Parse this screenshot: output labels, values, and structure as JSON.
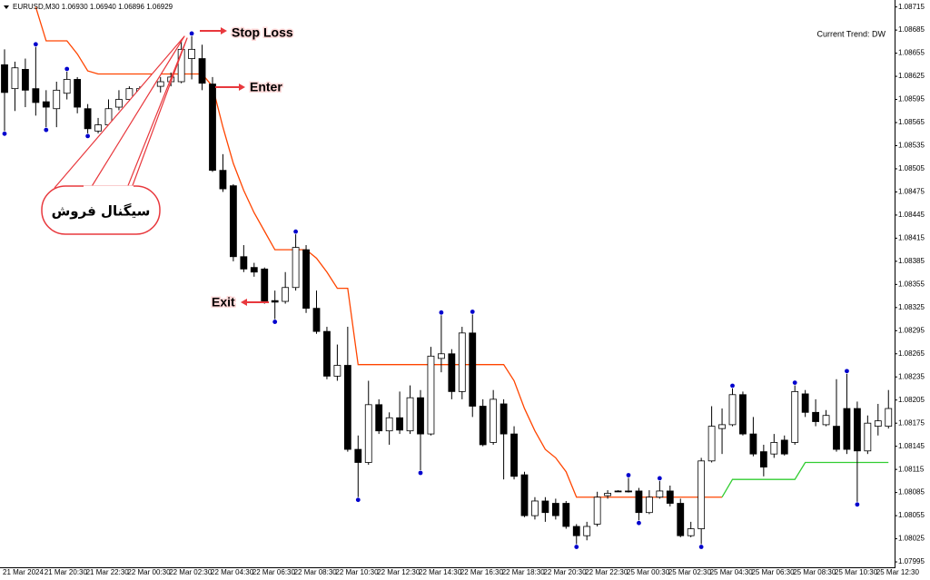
{
  "chart_data": {
    "type": "candlestick",
    "header": "EURUSD,M30  1.06930 1.06940 1.06896 1.06929",
    "trend_label": "Current Trend: DW",
    "trend_label_color": "#ff4500",
    "categories": [
      "21 Mar 2024",
      null,
      null,
      null,
      "21 Mar 20:30",
      null,
      null,
      null,
      "21 Mar 22:30",
      null,
      null,
      null,
      "22 Mar 00:30",
      null,
      null,
      null,
      "22 Mar 02:30",
      null,
      null,
      null,
      "22 Mar 04:30",
      null,
      null,
      null,
      "22 Mar 06:30",
      null,
      null,
      null,
      "22 Mar 08:30",
      null,
      null,
      null,
      "22 Mar 10:30",
      null,
      null,
      null,
      "22 Mar 12:30",
      null,
      null,
      null,
      "22 Mar 14:30",
      null,
      null,
      null,
      "22 Mar 16:30",
      null,
      null,
      null,
      "22 Mar 18:30",
      null,
      null,
      null,
      "22 Mar 20:30",
      null,
      null,
      null,
      "22 Mar 22:30",
      null,
      null,
      null,
      "25 Mar 00:30",
      null,
      null,
      null,
      "25 Mar 02:30",
      null,
      null,
      null,
      "25 Mar 04:30",
      null,
      null,
      null,
      "25 Mar 06:30",
      null,
      null,
      null,
      "25 Mar 08:30",
      null,
      null,
      null,
      "25 Mar 10:30",
      null,
      null,
      null,
      "25 Mar 12:30",
      null
    ],
    "open": [
      1.0864,
      1.08609,
      1.08634,
      1.08609,
      1.08592,
      1.08583,
      1.08603,
      1.08621,
      1.08583,
      1.08554,
      1.08562,
      1.08585,
      1.08595,
      1.08603,
      1.08611,
      1.08612,
      1.08618,
      1.08618,
      1.08648,
      1.08648,
      1.08615,
      1.08503,
      1.08483,
      1.08391,
      1.08377,
      1.08375,
      1.08334,
      1.08333,
      1.08351,
      1.084,
      1.08324,
      1.08294,
      1.08236,
      1.0825,
      1.08141,
      1.08124,
      1.08199,
      1.08165,
      1.08182,
      1.08165,
      1.08208,
      1.08161,
      1.08259,
      1.08265,
      1.08216,
      1.08292,
      1.08197,
      1.0815,
      1.082,
      1.08161,
      1.08108,
      1.08055,
      1.08074,
      1.08071,
      1.08071,
      1.08041,
      1.08029,
      1.08044,
      1.08081,
      1.08087,
      1.08087,
      1.08087,
      1.08059,
      1.08079,
      1.08087,
      1.08071,
      1.08029,
      1.08038,
      1.08126,
      1.08168,
      1.08173,
      1.08212,
      1.08161,
      1.08138,
      1.08135,
      1.08153,
      1.0815,
      1.08213,
      1.08189,
      1.08173,
      1.08171,
      1.08194,
      1.08194,
      1.08139,
      1.08171,
      1.08171
    ],
    "high": [
      1.0866,
      1.08644,
      1.08648,
      1.08663,
      1.08607,
      1.08618,
      1.08631,
      1.08624,
      1.08589,
      1.08571,
      1.08595,
      1.08607,
      1.08612,
      1.08612,
      1.08618,
      1.08624,
      1.0863,
      1.08671,
      1.08677,
      1.08666,
      1.08624,
      1.08524,
      1.08485,
      1.08406,
      1.08383,
      1.08377,
      1.08347,
      1.08371,
      1.0842,
      1.08406,
      1.08347,
      1.083,
      1.08277,
      1.083,
      1.08159,
      1.0823,
      1.08206,
      1.08189,
      1.08216,
      1.08224,
      1.08218,
      1.08274,
      1.08315,
      1.08271,
      1.083,
      1.08316,
      1.08206,
      1.08218,
      1.08206,
      1.08171,
      1.08112,
      1.08079,
      1.08079,
      1.08077,
      1.08074,
      1.08044,
      1.08047,
      1.08086,
      1.08088,
      1.08088,
      1.08104,
      1.08091,
      1.08088,
      1.081,
      1.08094,
      1.08077,
      1.08047,
      1.0813,
      1.08197,
      1.08194,
      1.0822,
      1.08216,
      1.08183,
      1.08147,
      1.08161,
      1.08159,
      1.08224,
      1.08218,
      1.08206,
      1.08192,
      1.08232,
      1.08239,
      1.08203,
      1.08185,
      1.082,
      1.08218
    ],
    "low": [
      1.08554,
      1.0858,
      1.08585,
      1.08574,
      1.08559,
      1.08559,
      1.08595,
      1.08577,
      1.08551,
      1.08551,
      1.08559,
      1.08581,
      1.08589,
      1.086,
      1.08607,
      1.08604,
      1.08612,
      1.08616,
      1.08621,
      1.08607,
      1.08501,
      1.08475,
      1.08385,
      1.08371,
      1.08365,
      1.0833,
      1.0831,
      1.0833,
      1.08347,
      1.08318,
      1.08291,
      1.08232,
      1.0823,
      1.08138,
      1.08079,
      1.08121,
      1.08161,
      1.08147,
      1.08161,
      1.08161,
      1.08114,
      1.08159,
      1.08241,
      1.08206,
      1.08206,
      1.08183,
      1.08145,
      1.08147,
      1.08102,
      1.08102,
      1.08053,
      1.0805,
      1.08047,
      1.0805,
      1.08038,
      1.08018,
      1.08023,
      1.08041,
      1.08077,
      1.08086,
      1.08085,
      1.08049,
      1.08057,
      1.08077,
      1.08067,
      1.08027,
      1.08027,
      1.08018,
      1.08124,
      1.08135,
      1.08171,
      1.08159,
      1.08132,
      1.08106,
      1.0813,
      1.08133,
      1.08147,
      1.08183,
      1.08171,
      1.08171,
      1.08138,
      1.08135,
      1.08073,
      1.08135,
      1.08159,
      1.08168
    ],
    "close": [
      1.08604,
      1.08636,
      1.08607,
      1.08591,
      1.08585,
      1.08607,
      1.08621,
      1.08585,
      1.08557,
      1.08562,
      1.08583,
      1.08595,
      1.08609,
      1.08609,
      1.08614,
      1.08618,
      1.08624,
      1.0866,
      1.0866,
      1.08616,
      1.08503,
      1.08479,
      1.08391,
      1.08375,
      1.08371,
      1.08333,
      1.08332,
      1.08351,
      1.08403,
      1.08324,
      1.08294,
      1.08236,
      1.0825,
      1.08141,
      1.08124,
      1.08199,
      1.08165,
      1.08182,
      1.08166,
      1.08208,
      1.08161,
      1.08262,
      1.08265,
      1.08216,
      1.08292,
      1.08197,
      1.08147,
      1.08206,
      1.08161,
      1.08106,
      1.08055,
      1.08074,
      1.08059,
      1.08055,
      1.08041,
      1.08029,
      1.08041,
      1.08079,
      1.08084,
      1.08087,
      1.08087,
      1.08059,
      1.08079,
      1.08087,
      1.08071,
      1.08029,
      1.08038,
      1.08126,
      1.08171,
      1.08173,
      1.08212,
      1.08161,
      1.08135,
      1.08118,
      1.0815,
      1.08135,
      1.08216,
      1.08189,
      1.08177,
      1.08185,
      1.08141,
      1.08141,
      1.08139,
      1.08175,
      1.08178,
      1.08194
    ],
    "series": [
      {
        "color": "#ff4500",
        "values": [
          null,
          null,
          null,
          1.08715,
          1.08671,
          1.08671,
          1.08671,
          1.08654,
          1.08632,
          1.08628,
          1.08628,
          1.08628,
          1.08628,
          1.08628,
          1.08628,
          1.08628,
          1.08628,
          1.08628,
          1.08628,
          1.08628,
          1.08612,
          1.08559,
          1.08512,
          1.08477,
          1.08448,
          1.08424,
          1.084,
          1.084,
          1.084,
          1.084,
          1.08389,
          1.08371,
          1.0835,
          1.0835,
          1.08251,
          1.08251,
          1.08251,
          1.08251,
          1.08251,
          1.08251,
          1.08251,
          1.08251,
          1.08251,
          1.08251,
          1.08251,
          1.08251,
          1.08251,
          1.08251,
          1.08251,
          1.0823,
          1.08194,
          1.08165,
          1.08141,
          1.0813,
          1.08112,
          1.08079,
          1.08079,
          1.08079,
          1.08079,
          1.08079,
          1.08079,
          1.08079,
          1.08079,
          1.08079,
          1.08079,
          1.08079,
          1.08079,
          1.08079,
          1.08079,
          1.08079,
          null,
          null,
          null,
          null,
          null,
          null,
          null,
          null,
          null,
          null,
          null,
          null,
          null,
          null,
          null,
          null
        ]
      },
      {
        "color": "#32cd32",
        "values": [
          null,
          null,
          null,
          null,
          null,
          null,
          null,
          null,
          null,
          null,
          null,
          null,
          null,
          null,
          null,
          null,
          null,
          null,
          null,
          null,
          null,
          null,
          null,
          null,
          null,
          null,
          null,
          null,
          null,
          null,
          null,
          null,
          null,
          null,
          null,
          null,
          null,
          null,
          null,
          null,
          null,
          null,
          null,
          null,
          null,
          null,
          null,
          null,
          null,
          null,
          null,
          null,
          null,
          null,
          null,
          null,
          null,
          null,
          null,
          null,
          null,
          null,
          null,
          null,
          null,
          null,
          null,
          null,
          null,
          1.08079,
          1.08102,
          1.08102,
          1.08102,
          1.08102,
          1.08102,
          1.08102,
          1.08102,
          1.08124,
          1.08124,
          1.08124,
          1.08124,
          1.08124,
          1.08124,
          1.08124,
          1.08124,
          1.08124
        ]
      }
    ],
    "fractals": {
      "color": "#0000cd",
      "up": [
        null,
        null,
        null,
        1.08663,
        null,
        null,
        1.08631,
        null,
        null,
        null,
        null,
        null,
        null,
        null,
        null,
        null,
        null,
        null,
        1.08677,
        null,
        null,
        null,
        null,
        null,
        null,
        null,
        null,
        null,
        1.0842,
        null,
        null,
        null,
        null,
        null,
        null,
        null,
        null,
        null,
        null,
        null,
        null,
        null,
        1.08315,
        null,
        null,
        1.08316,
        null,
        null,
        null,
        null,
        null,
        null,
        null,
        null,
        null,
        null,
        null,
        null,
        null,
        null,
        1.08104,
        null,
        null,
        1.081,
        null,
        null,
        null,
        null,
        null,
        null,
        1.0822,
        null,
        null,
        null,
        null,
        null,
        1.08224,
        null,
        null,
        null,
        null,
        1.08239,
        null,
        null,
        null,
        null
      ],
      "down": [
        1.08554,
        null,
        null,
        null,
        1.08559,
        null,
        null,
        null,
        1.08551,
        null,
        null,
        null,
        null,
        null,
        null,
        null,
        null,
        null,
        null,
        null,
        null,
        null,
        null,
        null,
        null,
        null,
        1.0831,
        null,
        null,
        null,
        null,
        null,
        null,
        null,
        1.08079,
        null,
        null,
        null,
        null,
        null,
        1.08114,
        null,
        null,
        null,
        null,
        null,
        null,
        null,
        null,
        null,
        null,
        null,
        null,
        null,
        null,
        1.08018,
        null,
        null,
        null,
        null,
        null,
        1.08049,
        null,
        null,
        null,
        null,
        null,
        1.08018,
        null,
        null,
        null,
        null,
        null,
        null,
        null,
        null,
        null,
        null,
        null,
        null,
        null,
        null,
        1.08073,
        null,
        null,
        null
      ]
    },
    "bull_color": "#ffffff",
    "bear_color": "#000000",
    "ylim": [
      1.07988,
      1.08724
    ],
    "yticks": [
      1.08715,
      1.08685,
      1.08655,
      1.08625,
      1.08595,
      1.08565,
      1.08535,
      1.08505,
      1.08475,
      1.08445,
      1.08415,
      1.08385,
      1.08355,
      1.08325,
      1.08295,
      1.08265,
      1.08235,
      1.08205,
      1.08175,
      1.08145,
      1.08115,
      1.08085,
      1.08055,
      1.08025,
      1.07995
    ],
    "grid": false,
    "annotations": [
      {
        "text": "Stop Loss",
        "color": "#e8383d"
      },
      {
        "text": "Enter",
        "color": "#2e9e3e"
      },
      {
        "text": "Exit",
        "color": "#1f3fd6"
      },
      {
        "text": "سیگنال فروش",
        "color": "#000000"
      }
    ]
  }
}
